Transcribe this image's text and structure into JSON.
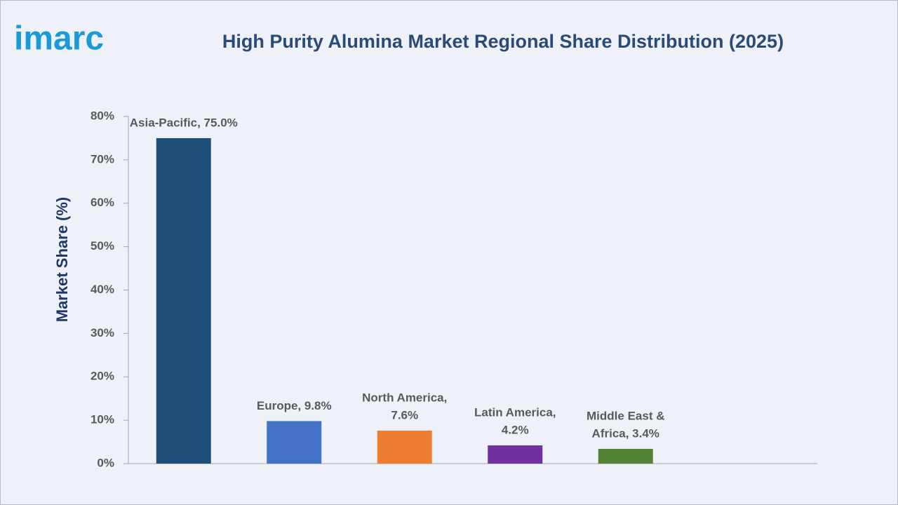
{
  "logo": "imarc",
  "chart_data": {
    "type": "bar",
    "title": "High Purity Alumina Market Regional Share Distribution (2025)",
    "y_label": "Market Share (%)",
    "values": [
      75.0,
      9.8,
      7.6,
      4.2,
      3.4
    ],
    "value_labels": [
      [
        "Asia-Pacific, 75.0%"
      ],
      [
        "Europe, 9.8%"
      ],
      [
        "North America,",
        "7.6%"
      ],
      [
        "Latin America,",
        "4.2%"
      ],
      [
        "Middle East &",
        "Africa, 3.4%"
      ]
    ],
    "colors": [
      "#1f4e79",
      "#4472c4",
      "#ed7d31",
      "#7030a0",
      "#548235"
    ],
    "ylim": [
      0,
      80
    ],
    "yticks": [
      {
        "value": 0,
        "label": "0%"
      },
      {
        "value": 10,
        "label": "10%"
      },
      {
        "value": 20,
        "label": "20%"
      },
      {
        "value": 30,
        "label": "30%"
      },
      {
        "value": 40,
        "label": "40%"
      },
      {
        "value": 50,
        "label": "50%"
      },
      {
        "value": 60,
        "label": "60%"
      },
      {
        "value": 70,
        "label": "70%"
      },
      {
        "value": 80,
        "label": "80%"
      }
    ],
    "grid": false
  }
}
